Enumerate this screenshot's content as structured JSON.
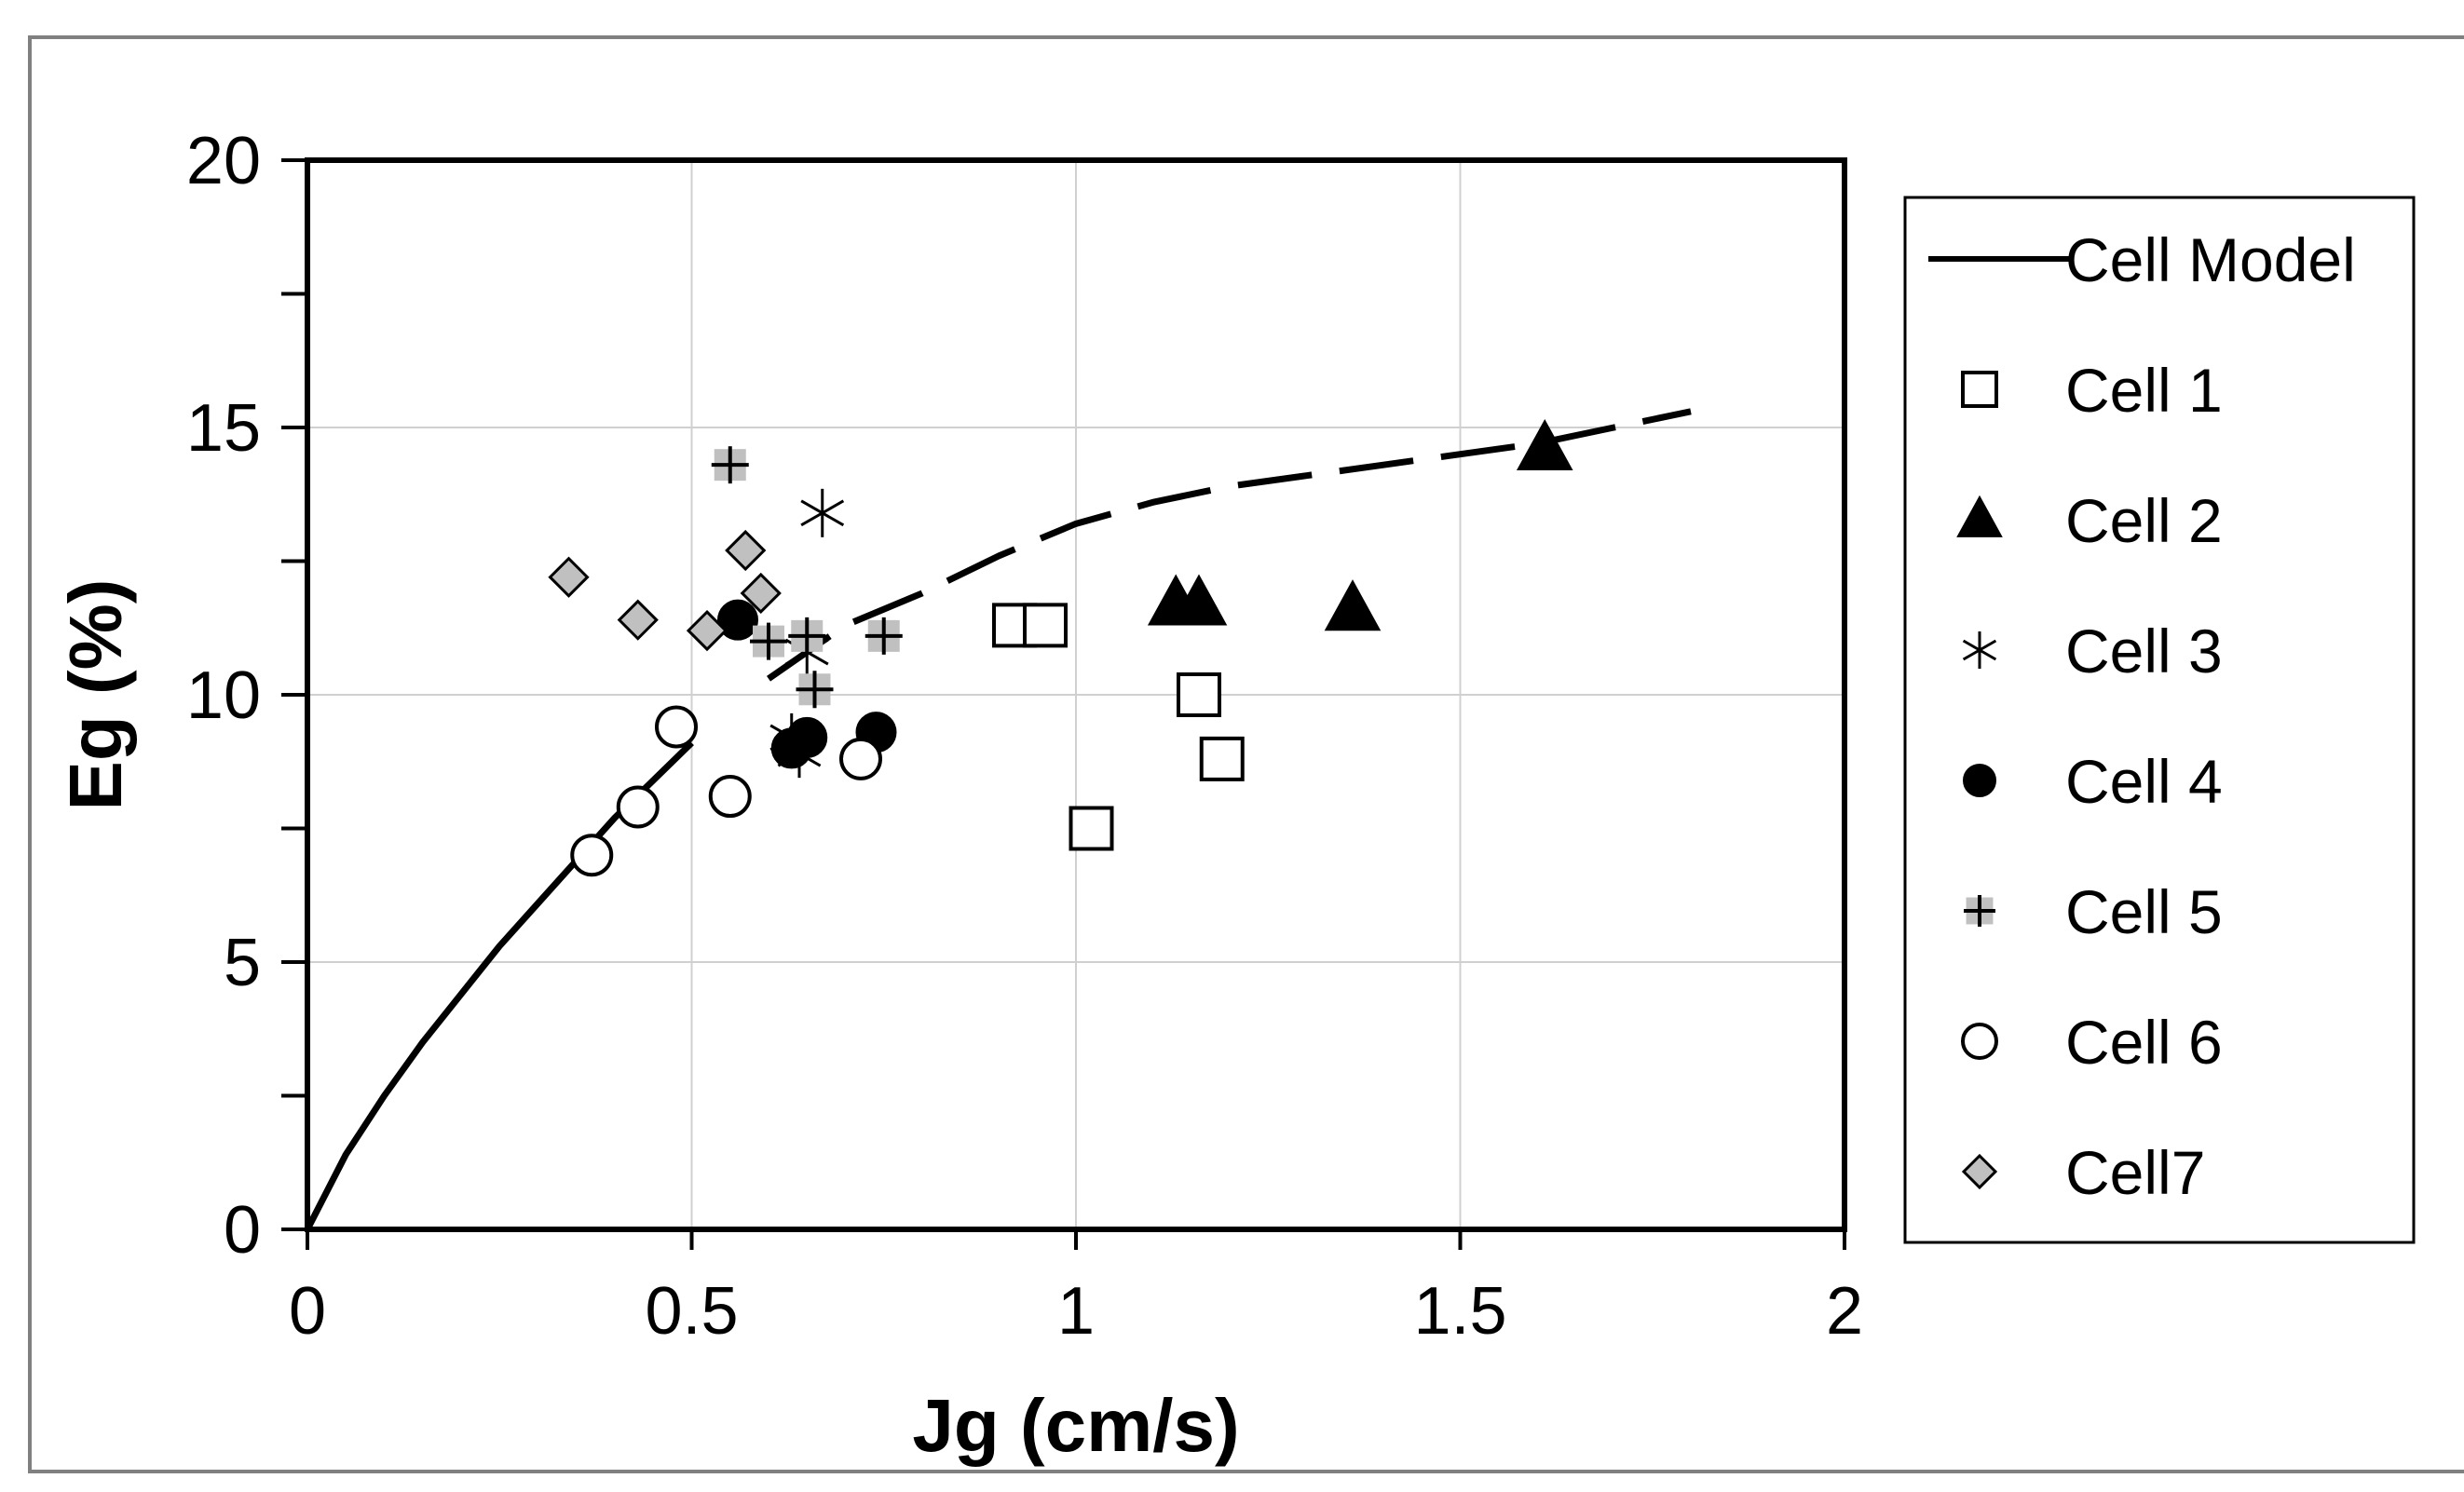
{
  "chart_data": {
    "type": "scatter",
    "title": "",
    "xlabel": "Jg  (cm/s)",
    "ylabel": "Eg  (%)",
    "xlim": [
      0,
      2
    ],
    "ylim": [
      0,
      20
    ],
    "xticks": [
      0,
      0.5,
      1,
      1.5,
      2
    ],
    "xtick_labels": [
      "0",
      "0.5",
      "1",
      "1.5",
      "2"
    ],
    "yticks": [
      0,
      5,
      10,
      15,
      20
    ],
    "ytick_labels": [
      "0",
      "5",
      "10",
      "15",
      "20"
    ],
    "grid": true,
    "legend_position": "right",
    "model": {
      "name": "Cell Model",
      "segments": [
        {
          "style": "solid",
          "x": [
            0,
            0.05,
            0.1,
            0.15,
            0.2,
            0.25,
            0.3,
            0.35,
            0.4,
            0.45,
            0.5
          ],
          "y": [
            0,
            1.4,
            2.5,
            3.5,
            4.4,
            5.3,
            6.1,
            6.9,
            7.7,
            8.4,
            9.1
          ]
        },
        {
          "style": "dashed",
          "x": [
            0.6,
            0.7,
            0.8,
            0.9,
            1.0,
            1.1,
            1.2,
            1.3,
            1.4,
            1.5,
            1.6,
            1.7,
            1.8
          ],
          "y": [
            10.3,
            11.3,
            11.9,
            12.6,
            13.2,
            13.6,
            13.9,
            14.1,
            14.3,
            14.5,
            14.7,
            15.0,
            15.3
          ]
        }
      ]
    },
    "series": [
      {
        "name": "Cell 1",
        "marker": "square-open",
        "x": [
          0.92,
          0.96,
          1.02,
          1.16,
          1.19
        ],
        "y": [
          11.3,
          11.3,
          7.5,
          10.0,
          8.8
        ]
      },
      {
        "name": "Cell 2",
        "marker": "triangle-filled",
        "x": [
          1.13,
          1.16,
          1.36,
          1.61
        ],
        "y": [
          11.7,
          11.7,
          11.6,
          14.6
        ]
      },
      {
        "name": "Cell 3",
        "marker": "asterisk",
        "x": [
          0.67,
          0.65,
          0.64,
          0.63
        ],
        "y": [
          13.4,
          10.8,
          8.9,
          9.2
        ]
      },
      {
        "name": "Cell 4",
        "marker": "circle-filled",
        "x": [
          0.56,
          0.63,
          0.65,
          0.74
        ],
        "y": [
          11.4,
          9.0,
          9.2,
          9.3
        ]
      },
      {
        "name": "Cell 5",
        "marker": "plus-gray",
        "x": [
          0.55,
          0.6,
          0.65,
          0.66,
          0.75
        ],
        "y": [
          14.3,
          11.0,
          11.1,
          10.1,
          11.1
        ]
      },
      {
        "name": "Cell 6",
        "marker": "circle-open",
        "x": [
          0.37,
          0.43,
          0.48,
          0.55,
          0.72
        ],
        "y": [
          7.0,
          7.9,
          9.4,
          8.1,
          8.8
        ]
      },
      {
        "name": "Cell7",
        "marker": "diamond-gray",
        "x": [
          0.34,
          0.43,
          0.52,
          0.57,
          0.59
        ],
        "y": [
          12.2,
          11.4,
          11.2,
          12.7,
          11.9
        ]
      }
    ]
  },
  "colors": {
    "gray_fill": "#c0c0c0",
    "grid": "#d0d0d0",
    "ink": "#000000"
  }
}
